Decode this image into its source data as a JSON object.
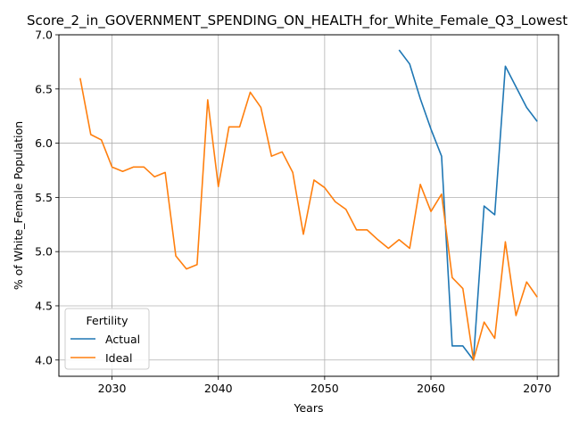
{
  "chart_data": {
    "type": "line",
    "title": "Score_2_in_GOVERNMENT_SPENDING_ON_HEALTH_for_White_Female_Q3_Lowest",
    "xlabel": "Years",
    "ylabel": "% of White_Female Population",
    "xlim": [
      2025,
      2072
    ],
    "ylim": [
      3.85,
      7.0
    ],
    "xticks": [
      2030,
      2040,
      2050,
      2060,
      2070
    ],
    "yticks": [
      4.0,
      4.5,
      5.0,
      5.5,
      6.0,
      6.5,
      7.0
    ],
    "grid": true,
    "legend": {
      "title": "Fertility",
      "placement": "lower-left"
    },
    "series": [
      {
        "name": "Actual",
        "color": "#1f77b4",
        "x": [
          2057,
          2058,
          2059,
          2060,
          2061,
          2062,
          2063,
          2064,
          2065,
          2066,
          2067,
          2068,
          2069,
          2070
        ],
        "values": [
          6.86,
          6.73,
          6.41,
          6.13,
          5.88,
          4.13,
          4.13,
          4.0,
          5.42,
          5.34,
          6.71,
          6.52,
          6.33,
          6.2
        ]
      },
      {
        "name": "Ideal",
        "color": "#ff7f0e",
        "x": [
          2027,
          2028,
          2029,
          2030,
          2031,
          2032,
          2033,
          2034,
          2035,
          2036,
          2037,
          2038,
          2039,
          2040,
          2041,
          2042,
          2043,
          2044,
          2045,
          2046,
          2047,
          2048,
          2049,
          2050,
          2051,
          2052,
          2053,
          2054,
          2055,
          2056,
          2057,
          2058,
          2059,
          2060,
          2061,
          2062,
          2063,
          2064,
          2065,
          2066,
          2067,
          2068,
          2069,
          2070
        ],
        "values": [
          6.6,
          6.08,
          6.03,
          5.78,
          5.74,
          5.78,
          5.78,
          5.69,
          5.73,
          4.96,
          4.84,
          4.88,
          6.4,
          5.6,
          6.15,
          6.15,
          6.47,
          6.33,
          5.88,
          5.92,
          5.73,
          5.16,
          5.66,
          5.59,
          5.46,
          5.39,
          5.2,
          5.2,
          5.11,
          5.03,
          5.11,
          5.03,
          5.62,
          5.37,
          5.53,
          4.76,
          4.66,
          4.0,
          4.35,
          4.2,
          5.09,
          4.41,
          4.72,
          4.58
        ]
      }
    ]
  }
}
